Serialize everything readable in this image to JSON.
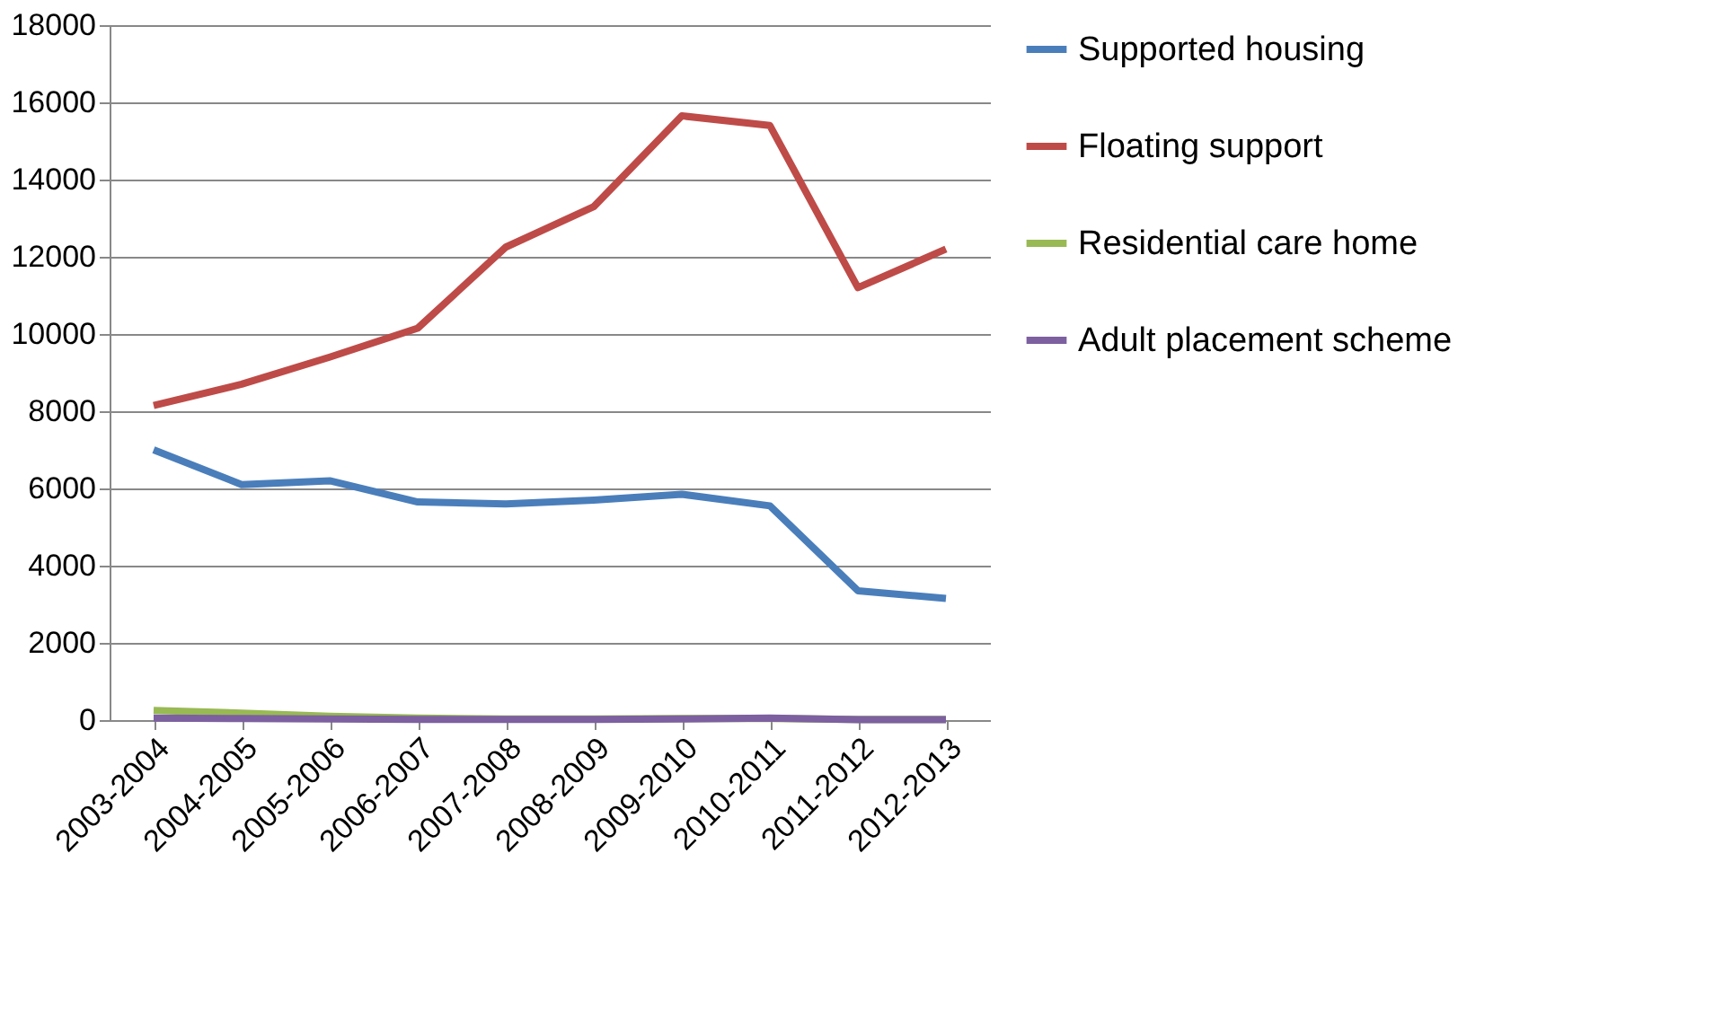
{
  "chart_data": {
    "type": "line",
    "categories": [
      "2003-2004",
      "2004-2005",
      "2005-2006",
      "2006-2007",
      "2007-2008",
      "2008-2009",
      "2009-2010",
      "2010-2011",
      "2011-2012",
      "2012-2013"
    ],
    "series": [
      {
        "name": "Supported housing",
        "color": "#4a7ebb",
        "values": [
          7000,
          6100,
          6200,
          5650,
          5600,
          5700,
          5850,
          5550,
          3350,
          3150
        ]
      },
      {
        "name": "Floating support",
        "color": "#be4b48",
        "values": [
          8150,
          8700,
          9400,
          10150,
          12250,
          13300,
          15650,
          15400,
          11200,
          12200
        ]
      },
      {
        "name": "Residential care home",
        "color": "#98b954",
        "values": [
          250,
          180,
          100,
          50,
          30,
          30,
          40,
          40,
          20,
          20
        ]
      },
      {
        "name": "Adult placement scheme",
        "color": "#7d60a0",
        "values": [
          50,
          40,
          30,
          20,
          20,
          20,
          30,
          50,
          10,
          10
        ]
      }
    ],
    "ylim": [
      0,
      18000
    ],
    "yticks": [
      0,
      2000,
      4000,
      6000,
      8000,
      10000,
      12000,
      14000,
      16000,
      18000
    ],
    "grid": "y",
    "legend": "right",
    "marker": "none",
    "line_style": "solid"
  }
}
